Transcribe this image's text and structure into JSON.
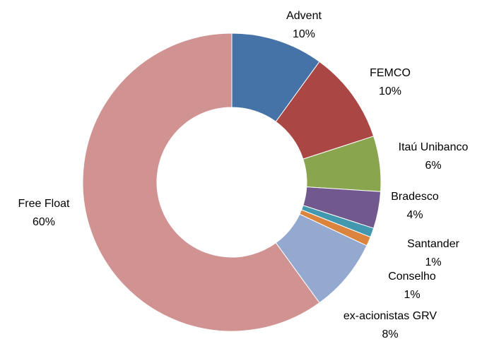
{
  "chart_data": {
    "type": "donut",
    "categories": [
      "Advent",
      "FEMCO",
      "Itaú Unibanco",
      "Bradesco",
      "Santander",
      "Conselho",
      "ex-acionistas GRV",
      "Free Float"
    ],
    "values": [
      10,
      10,
      6,
      4,
      1,
      1,
      8,
      60
    ],
    "value_labels": [
      "10%",
      "10%",
      "6%",
      "4%",
      "1%",
      "1%",
      "8%",
      "60%"
    ],
    "colors": [
      "#4572a7",
      "#aa4643",
      "#89a54e",
      "#71588f",
      "#4198af",
      "#db843d",
      "#93a9cf",
      "#d19392"
    ]
  }
}
